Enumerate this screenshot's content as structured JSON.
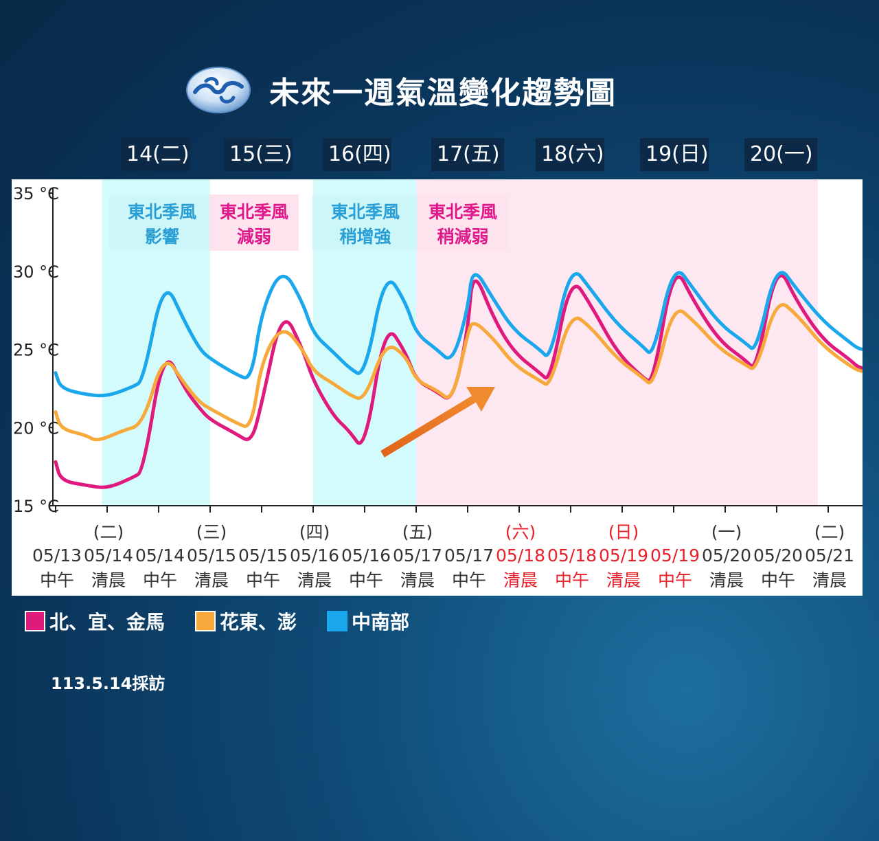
{
  "header": {
    "title": "未來一週氣溫變化趨勢圖",
    "logo_icon": "cwa-logo-icon"
  },
  "day_tabs": [
    "14(二)",
    "15(三)",
    "16(四)",
    "17(五)",
    "18(六)",
    "19(日)",
    "20(一)"
  ],
  "annotations": [
    {
      "line1": "東北季風",
      "line2": "影響",
      "color": "#2a9fd6",
      "bg": "#cdf6f8"
    },
    {
      "line1": "東北季風",
      "line2": "減弱",
      "color": "#e0198a",
      "bg": "#fce3ee"
    },
    {
      "line1": "東北季風",
      "line2": "稍增強",
      "color": "#2a9fd6",
      "bg": "#cdf6f8"
    },
    {
      "line1": "東北季風",
      "line2": "稍減弱",
      "color": "#e0198a",
      "bg": "#fce3ee"
    }
  ],
  "legend": [
    {
      "label": "北、宜、金馬",
      "color": "#e0197d"
    },
    {
      "label": "花東、澎",
      "color": "#f7a93b"
    },
    {
      "label": "中南部",
      "color": "#1aa7ec"
    }
  ],
  "footnote": "113.5.14採訪",
  "chart_data": {
    "type": "line",
    "ylim": [
      15,
      35
    ],
    "y_ticks": [
      "35 °C",
      "30 °C",
      "25 °C",
      "20 °C",
      "15 °C"
    ],
    "x_ticks": [
      {
        "weekday": "",
        "date": "05/13",
        "time": "中午",
        "weekend": false
      },
      {
        "weekday": "(二)",
        "date": "05/14",
        "time": "清晨",
        "weekend": false
      },
      {
        "weekday": "",
        "date": "05/14",
        "time": "中午",
        "weekend": false
      },
      {
        "weekday": "(三)",
        "date": "05/15",
        "time": "清晨",
        "weekend": false
      },
      {
        "weekday": "",
        "date": "05/15",
        "time": "中午",
        "weekend": false
      },
      {
        "weekday": "(四)",
        "date": "05/16",
        "time": "清晨",
        "weekend": false
      },
      {
        "weekday": "",
        "date": "05/16",
        "time": "中午",
        "weekend": false
      },
      {
        "weekday": "(五)",
        "date": "05/17",
        "time": "清晨",
        "weekend": false
      },
      {
        "weekday": "",
        "date": "05/17",
        "time": "中午",
        "weekend": false
      },
      {
        "weekday": "(六)",
        "date": "05/18",
        "time": "清晨",
        "weekend": true
      },
      {
        "weekday": "",
        "date": "05/18",
        "time": "中午",
        "weekend": true
      },
      {
        "weekday": "(日)",
        "date": "05/19",
        "time": "清晨",
        "weekend": true
      },
      {
        "weekday": "",
        "date": "05/19",
        "time": "中午",
        "weekend": true
      },
      {
        "weekday": "(一)",
        "date": "05/20",
        "time": "清晨",
        "weekend": false
      },
      {
        "weekday": "",
        "date": "05/20",
        "time": "中午",
        "weekend": false
      },
      {
        "weekday": "(二)",
        "date": "05/21",
        "time": "清晨",
        "weekend": false
      }
    ],
    "shaded_periods": [
      {
        "from": 0.9,
        "to": 3.0,
        "color": "#d4fbfb"
      },
      {
        "from": 5.0,
        "to": 7.0,
        "color": "#d4fbfb"
      },
      {
        "from": 7.0,
        "to": 14.8,
        "color": "#fde8f2"
      }
    ],
    "series": [
      {
        "name": "北、宜、金馬",
        "color": "#e0197d",
        "points": [
          [
            0,
            17.8
          ],
          [
            0.1,
            16.6
          ],
          [
            0.6,
            16.3
          ],
          [
            1.0,
            16.1
          ],
          [
            1.5,
            16.8
          ],
          [
            1.7,
            17.2
          ],
          [
            2.1,
            25.2
          ],
          [
            2.5,
            22.5
          ],
          [
            2.8,
            21.2
          ],
          [
            3.0,
            20.5
          ],
          [
            3.5,
            19.6
          ],
          [
            3.8,
            19.0
          ],
          [
            4.0,
            21.5
          ],
          [
            4.4,
            27.7
          ],
          [
            4.8,
            25.0
          ],
          [
            5.0,
            23.0
          ],
          [
            5.4,
            20.7
          ],
          [
            5.7,
            19.8
          ],
          [
            6.0,
            18.4
          ],
          [
            6.4,
            26.8
          ],
          [
            6.8,
            24.8
          ],
          [
            7.0,
            23.0
          ],
          [
            7.4,
            22.3
          ],
          [
            7.7,
            21.6
          ],
          [
            8.0,
            26.0
          ],
          [
            8.1,
            30.3
          ],
          [
            8.5,
            27.0
          ],
          [
            8.9,
            24.8
          ],
          [
            9.4,
            23.5
          ],
          [
            9.6,
            22.9
          ],
          [
            10.0,
            29.8
          ],
          [
            10.4,
            27.8
          ],
          [
            10.9,
            24.8
          ],
          [
            11.4,
            23.2
          ],
          [
            11.6,
            22.8
          ],
          [
            12.0,
            30.6
          ],
          [
            12.4,
            28.0
          ],
          [
            12.9,
            25.5
          ],
          [
            13.4,
            24.3
          ],
          [
            13.6,
            23.6
          ],
          [
            14.0,
            30.7
          ],
          [
            14.4,
            28.0
          ],
          [
            14.9,
            25.6
          ],
          [
            15.4,
            24.4
          ],
          [
            15.6,
            23.8
          ],
          [
            15.8,
            23.8
          ]
        ]
      },
      {
        "name": "花東、澎",
        "color": "#f7a93b",
        "points": [
          [
            0,
            21.0
          ],
          [
            0.1,
            19.9
          ],
          [
            0.6,
            19.5
          ],
          [
            0.8,
            19.1
          ],
          [
            1.3,
            19.8
          ],
          [
            1.7,
            20.2
          ],
          [
            2.1,
            24.8
          ],
          [
            2.5,
            22.8
          ],
          [
            2.8,
            21.6
          ],
          [
            3.0,
            21.2
          ],
          [
            3.5,
            20.3
          ],
          [
            3.8,
            19.9
          ],
          [
            4.0,
            24.3
          ],
          [
            4.4,
            26.6
          ],
          [
            4.8,
            25.0
          ],
          [
            5.0,
            23.6
          ],
          [
            5.4,
            22.8
          ],
          [
            5.7,
            22.1
          ],
          [
            6.0,
            21.7
          ],
          [
            6.4,
            25.5
          ],
          [
            6.8,
            24.6
          ],
          [
            7.0,
            23.0
          ],
          [
            7.4,
            22.4
          ],
          [
            7.7,
            21.6
          ],
          [
            8.0,
            26.0
          ],
          [
            8.1,
            26.9
          ],
          [
            8.5,
            25.7
          ],
          [
            8.9,
            24.0
          ],
          [
            9.4,
            23.0
          ],
          [
            9.6,
            22.6
          ],
          [
            10.0,
            27.4
          ],
          [
            10.4,
            26.4
          ],
          [
            10.9,
            24.4
          ],
          [
            11.4,
            23.2
          ],
          [
            11.6,
            22.6
          ],
          [
            12.0,
            27.9
          ],
          [
            12.4,
            26.8
          ],
          [
            12.9,
            25.0
          ],
          [
            13.4,
            24.0
          ],
          [
            13.6,
            23.6
          ],
          [
            14.0,
            28.3
          ],
          [
            14.4,
            27.2
          ],
          [
            14.9,
            25.2
          ],
          [
            15.4,
            24.0
          ],
          [
            15.6,
            23.6
          ],
          [
            15.8,
            23.6
          ]
        ]
      },
      {
        "name": "中南部",
        "color": "#1aa7ec",
        "points": [
          [
            0,
            23.5
          ],
          [
            0.1,
            22.5
          ],
          [
            0.6,
            22.1
          ],
          [
            1.0,
            22.0
          ],
          [
            1.5,
            22.6
          ],
          [
            1.7,
            23.0
          ],
          [
            2.1,
            29.6
          ],
          [
            2.5,
            26.8
          ],
          [
            2.8,
            25.0
          ],
          [
            3.0,
            24.4
          ],
          [
            3.5,
            23.4
          ],
          [
            3.8,
            23.0
          ],
          [
            4.0,
            27.5
          ],
          [
            4.4,
            30.3
          ],
          [
            4.8,
            28.0
          ],
          [
            5.0,
            26.0
          ],
          [
            5.4,
            24.8
          ],
          [
            5.7,
            23.8
          ],
          [
            6.0,
            23.2
          ],
          [
            6.4,
            30.1
          ],
          [
            6.8,
            28.0
          ],
          [
            7.0,
            26.0
          ],
          [
            7.4,
            25.0
          ],
          [
            7.7,
            24.1
          ],
          [
            8.0,
            27.5
          ],
          [
            8.1,
            30.4
          ],
          [
            8.5,
            28.2
          ],
          [
            8.9,
            26.2
          ],
          [
            9.4,
            25.0
          ],
          [
            9.6,
            24.3
          ],
          [
            10.0,
            30.5
          ],
          [
            10.4,
            28.8
          ],
          [
            10.9,
            26.6
          ],
          [
            11.4,
            25.2
          ],
          [
            11.6,
            24.5
          ],
          [
            12.0,
            30.6
          ],
          [
            12.4,
            28.8
          ],
          [
            12.9,
            26.6
          ],
          [
            13.4,
            25.4
          ],
          [
            13.6,
            24.8
          ],
          [
            14.0,
            30.6
          ],
          [
            14.4,
            28.8
          ],
          [
            14.9,
            26.8
          ],
          [
            15.4,
            25.5
          ],
          [
            15.6,
            25.0
          ],
          [
            15.8,
            25.0
          ]
        ]
      }
    ]
  }
}
